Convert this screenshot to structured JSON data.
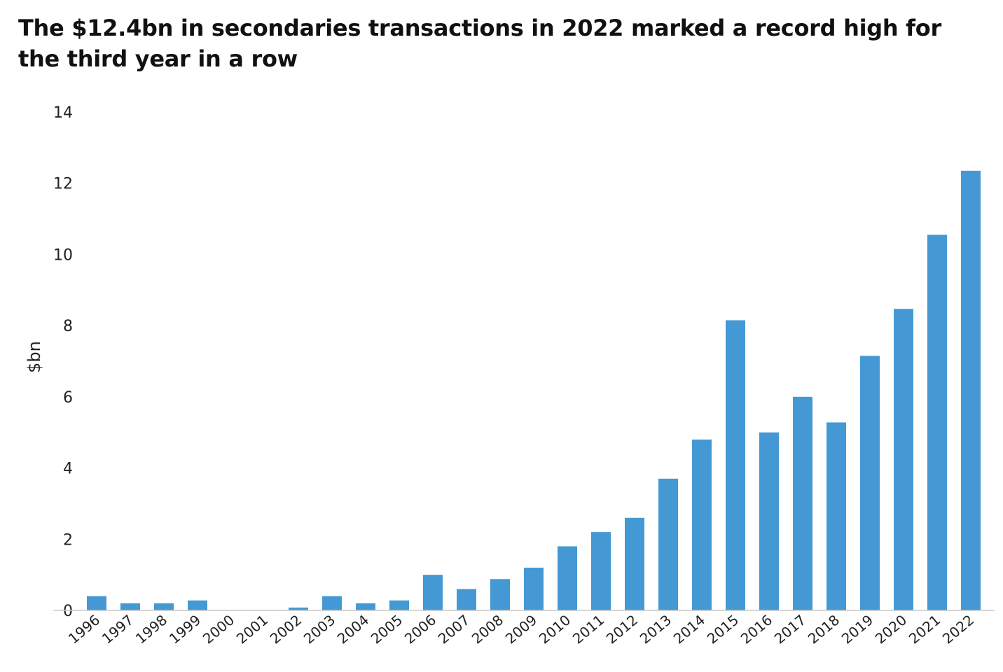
{
  "title": "The $12.4bn in secondaries transactions in 2022 marked a record high for the third year in a row",
  "chart_data": {
    "type": "bar",
    "ylabel": "$bn",
    "xlabel": "",
    "ylim": [
      0,
      14
    ],
    "yticks": [
      "0",
      "2",
      "4",
      "6",
      "8",
      "10",
      "12",
      "14"
    ],
    "grid": false,
    "legend": "none",
    "bar_color": "#4499d5",
    "categories": [
      "1996",
      "1997",
      "1998",
      "1999",
      "2000",
      "2001",
      "2002",
      "2003",
      "2004",
      "2005",
      "2006",
      "2007",
      "2008",
      "2009",
      "2010",
      "2011",
      "2012",
      "2013",
      "2014",
      "2015",
      "2016",
      "2017",
      "2018",
      "2019",
      "2020",
      "2021",
      "2022"
    ],
    "values": [
      0.4,
      0.2,
      0.2,
      0.28,
      0,
      0,
      0.08,
      0.4,
      0.2,
      0.28,
      1.0,
      0.6,
      0.88,
      1.2,
      1.8,
      2.2,
      2.6,
      3.7,
      4.8,
      8.15,
      5.0,
      6.0,
      5.28,
      7.15,
      8.47,
      10.55,
      12.35
    ]
  }
}
